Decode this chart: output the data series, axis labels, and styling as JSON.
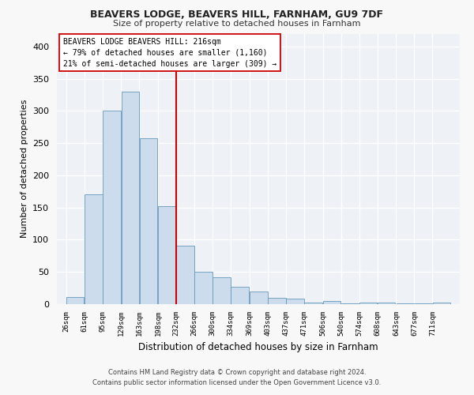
{
  "title1": "BEAVERS LODGE, BEAVERS HILL, FARNHAM, GU9 7DF",
  "title2": "Size of property relative to detached houses in Farnham",
  "xlabel": "Distribution of detached houses by size in Farnham",
  "ylabel": "Number of detached properties",
  "bar_color": "#ccdcec",
  "bar_edge_color": "#6699bb",
  "bin_labels": [
    "26sqm",
    "61sqm",
    "95sqm",
    "129sqm",
    "163sqm",
    "198sqm",
    "232sqm",
    "266sqm",
    "300sqm",
    "334sqm",
    "369sqm",
    "403sqm",
    "437sqm",
    "471sqm",
    "506sqm",
    "540sqm",
    "574sqm",
    "608sqm",
    "643sqm",
    "677sqm",
    "711sqm"
  ],
  "heights": [
    11,
    170,
    301,
    330,
    257,
    152,
    91,
    50,
    42,
    27,
    20,
    10,
    8,
    3,
    5,
    1,
    3,
    2,
    1,
    1,
    2
  ],
  "vline_color": "#cc0000",
  "annotation_text": "BEAVERS LODGE BEAVERS HILL: 216sqm\n← 79% of detached houses are smaller (1,160)\n21% of semi-detached houses are larger (309) →",
  "annotation_box_color": "#ffffff",
  "annotation_edge_color": "#cc0000",
  "footer1": "Contains HM Land Registry data © Crown copyright and database right 2024.",
  "footer2": "Contains public sector information licensed under the Open Government Licence v3.0.",
  "ylim": [
    0,
    420
  ],
  "bg_color": "#eef2f7",
  "grid_color": "#ffffff",
  "bin_starts": [
    26,
    61,
    95,
    129,
    163,
    198,
    232,
    266,
    300,
    334,
    369,
    403,
    437,
    471,
    506,
    540,
    574,
    608,
    643,
    677,
    711
  ],
  "bin_width": 34,
  "vline_x_bin_index": 5,
  "fig_bg": "#f8f8f8"
}
